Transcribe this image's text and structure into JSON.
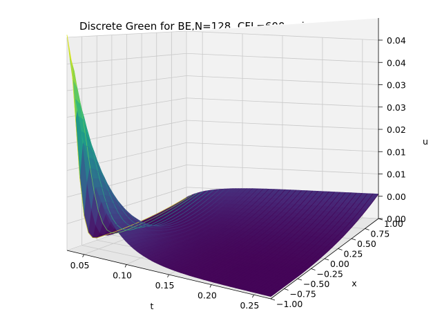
{
  "chart_data": {
    "type": "surface3d",
    "title": "Discrete Green for BE,N=128, CFL=600, min=0.00044",
    "xlabel": "t",
    "ylabel": "x",
    "zlabel": "u",
    "t_ticks": [
      "0.05",
      "0.10",
      "0.15",
      "0.20",
      "0.25"
    ],
    "x_ticks": [
      "−1.00",
      "−0.75",
      "−0.50",
      "−0.25",
      "0.00",
      "0.25",
      "0.50",
      "0.75",
      "1.00"
    ],
    "u_ticks": [
      "0.00",
      "0.00",
      "0.01",
      "0.01",
      "0.02",
      "0.03",
      "0.03",
      "0.04",
      "0.04"
    ],
    "t_range": [
      0.03,
      0.27
    ],
    "x_range": [
      -1.0,
      1.0
    ],
    "u_range": [
      0.0,
      0.04
    ],
    "grid": true,
    "colormap": "viridis",
    "surface": {
      "t0": 0.03,
      "t1": 0.27,
      "x0": -1.0,
      "x1": 1.0,
      "u_at_t0_x_minus1": 0.04,
      "u_at_t1_x_plus1": 0.0055,
      "min": 0.00044
    }
  }
}
